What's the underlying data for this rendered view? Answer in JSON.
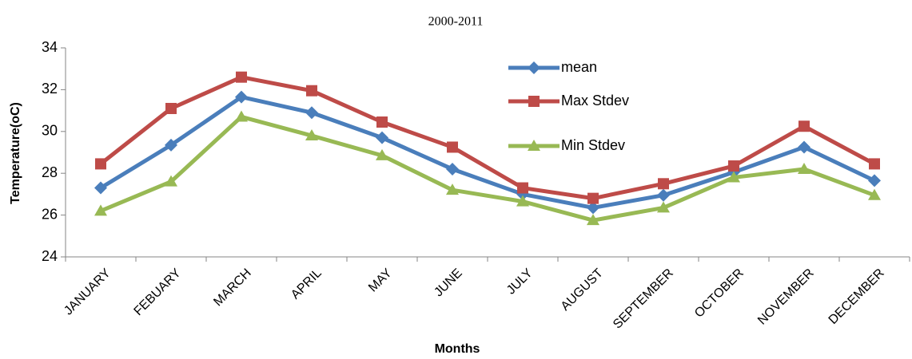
{
  "chart_data": {
    "type": "line",
    "title": "2000-2011",
    "x_label": "Months",
    "y_label": "Temperature(oC)",
    "categories": [
      "JANUARY",
      "FEBUARY",
      "MARCH",
      "APRIL",
      "MAY",
      "JUNE",
      "JULY",
      "AUGUST",
      "SEPTEMBER",
      "OCTOBER",
      "NOVEMBER",
      "DECEMBER"
    ],
    "series": [
      {
        "name": "mean",
        "color": "#4a7ebb",
        "marker": "diamond",
        "values": [
          27.3,
          29.35,
          31.65,
          30.9,
          29.7,
          28.2,
          27.0,
          26.35,
          26.95,
          28.05,
          29.25,
          27.65
        ]
      },
      {
        "name": "Max Stdev",
        "color": "#be4b48",
        "marker": "square",
        "values": [
          28.45,
          31.1,
          32.6,
          31.95,
          30.45,
          29.25,
          27.3,
          26.8,
          27.5,
          28.35,
          30.25,
          28.45
        ]
      },
      {
        "name": "Min Stdev",
        "color": "#98b954",
        "marker": "triangle",
        "values": [
          26.2,
          27.6,
          30.7,
          29.8,
          28.85,
          27.2,
          26.65,
          25.75,
          26.35,
          27.8,
          28.2,
          26.95
        ]
      }
    ],
    "ylim": [
      24,
      34
    ],
    "yticks": [
      24,
      26,
      28,
      30,
      32,
      34
    ],
    "grid": false,
    "legend": "top-right"
  }
}
